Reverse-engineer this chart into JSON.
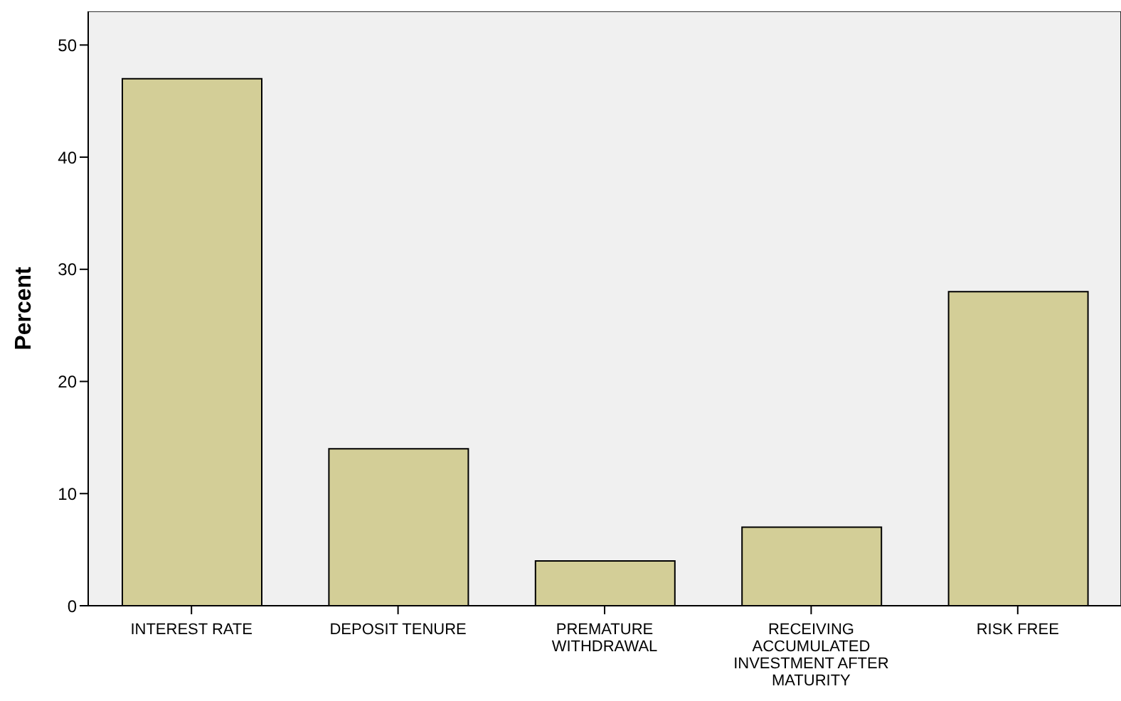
{
  "chart_data": {
    "type": "bar",
    "ylabel": "Percent",
    "categories": [
      "INTEREST RATE",
      "DEPOSIT TENURE",
      "PREMATURE WITHDRAWAL",
      "RECEIVING ACCUMULATED INVESTMENT AFTER MATURITY",
      "RISK FREE"
    ],
    "values": [
      47,
      14,
      4,
      7,
      28
    ],
    "color": "#d3ce97",
    "ylim": [
      0,
      53
    ],
    "yticks": [
      0,
      10,
      20,
      30,
      40,
      50
    ],
    "legend": false
  }
}
